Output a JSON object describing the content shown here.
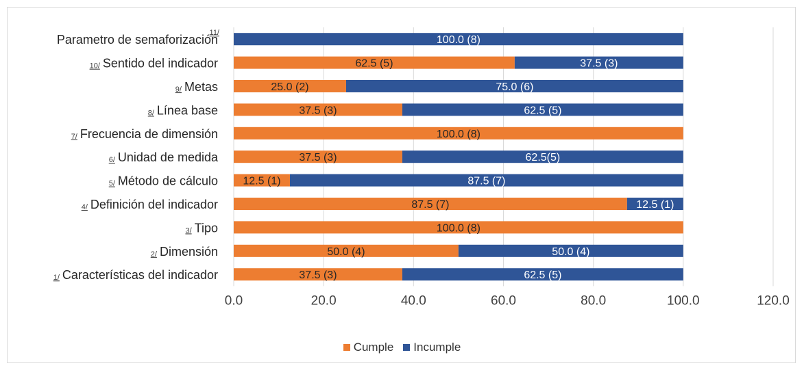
{
  "chart_data": {
    "type": "bar",
    "orientation": "horizontal",
    "stacked": true,
    "xlim": [
      0,
      120
    ],
    "xticks": [
      "0.0",
      "20.0",
      "40.0",
      "60.0",
      "80.0",
      "100.0",
      "120.0"
    ],
    "grid": true,
    "legend_position": "bottom",
    "categories": [
      {
        "note": "11/",
        "label": "Parametro  de semaforización"
      },
      {
        "note": "10/",
        "label": "Sentido del indicador"
      },
      {
        "note": "9/",
        "label": "Metas"
      },
      {
        "note": "8/",
        "label": "Línea base"
      },
      {
        "note": "7/",
        "label": "Frecuencia de dimensión"
      },
      {
        "note": "6/",
        "label": "Unidad de medida"
      },
      {
        "note": "5/",
        "label": "Método de cálculo"
      },
      {
        "note": "4/",
        "label": "Definición del indicador"
      },
      {
        "note": "3/",
        "label": "Tipo"
      },
      {
        "note": "2/",
        "label": "Dimensión"
      },
      {
        "note": "1/",
        "label": "Características del indicador"
      }
    ],
    "series": [
      {
        "name": "Cumple",
        "color": "#ED7D31",
        "values": [
          0,
          62.5,
          25.0,
          37.5,
          100.0,
          37.5,
          12.5,
          87.5,
          100.0,
          50.0,
          37.5
        ],
        "data_labels": [
          "",
          "62.5 (5)",
          "25.0 (2)",
          "37.5 (3)",
          "100.0 (8)",
          "37.5 (3)",
          "12.5 (1)",
          "87.5 (7)",
          "100.0 (8)",
          "50.0 (4)",
          "37.5 (3)"
        ]
      },
      {
        "name": "Incumple",
        "color": "#2F5597",
        "values": [
          100.0,
          37.5,
          75.0,
          62.5,
          0,
          62.5,
          87.5,
          12.5,
          0,
          50.0,
          62.5
        ],
        "data_labels": [
          "100.0 (8)",
          "37.5 (3)",
          "75.0 (6)",
          "62.5 (5)",
          "",
          "62.5(5)",
          "87.5 (7)",
          "12.5 (1)",
          "0",
          "50.0 (4)",
          "62.5 (5)"
        ]
      }
    ]
  }
}
